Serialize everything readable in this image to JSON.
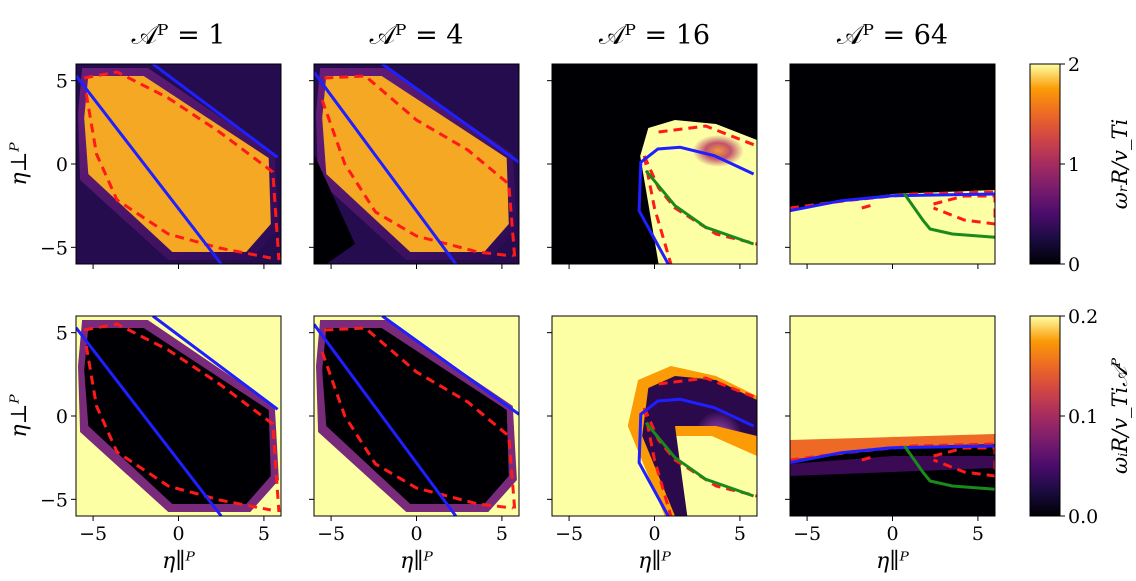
{
  "chart_data": {
    "type": "heatmap",
    "panel_titles": [
      "𝒜ᴾ = 1",
      "𝒜ᴾ = 4",
      "𝒜ᴾ = 16",
      "𝒜ᴾ = 64"
    ],
    "xlabel": "η∥ᴾ",
    "ylabel": "η⊥ᴾ",
    "xlim": [
      -6,
      6
    ],
    "ylim": [
      -6,
      6
    ],
    "xticks": [
      -5,
      0,
      5
    ],
    "yticks": [
      -5,
      0,
      5
    ],
    "tick_labels": [
      "−5",
      "0",
      "5"
    ],
    "colormap": "inferno",
    "rows": [
      {
        "quantity": "ω_r R / v_Ti",
        "colorbar_label": "ωᵣR/v_Ti",
        "colorbar_range": [
          0,
          2
        ],
        "colorbar_ticks": [
          0,
          1,
          2
        ],
        "colorbar_tick_labels": [
          "0",
          "1",
          "2"
        ]
      },
      {
        "quantity": "ω_i R / v_Ti 𝒜ᴾ",
        "colorbar_label": "ωᵢR/v_Ti𝒜ᴾ",
        "colorbar_range": [
          0,
          0.2
        ],
        "colorbar_ticks": [
          0,
          0.1,
          0.2
        ],
        "colorbar_tick_labels": [
          "0.0",
          "0.1",
          "0.2"
        ]
      }
    ],
    "overlay_curves": [
      {
        "panel": 0,
        "color": "#1f1fff",
        "style": "solid",
        "points": [
          [
            -1.5,
            6
          ],
          [
            5.8,
            0.4
          ]
        ]
      },
      {
        "panel": 0,
        "color": "#1f1fff",
        "style": "solid",
        "points": [
          [
            -6,
            5.3
          ],
          [
            2.5,
            -6
          ]
        ]
      },
      {
        "panel": 1,
        "color": "#1f1fff",
        "style": "solid",
        "points": [
          [
            -2,
            6
          ],
          [
            6,
            0.1
          ]
        ]
      },
      {
        "panel": 1,
        "color": "#1f1fff",
        "style": "solid",
        "points": [
          [
            -6,
            5.5
          ],
          [
            2.3,
            -6
          ]
        ]
      },
      {
        "panel": 2,
        "color": "#1f1fff",
        "style": "solid",
        "points": [
          [
            0.8,
            -6
          ],
          [
            -0.9,
            -2.8
          ],
          [
            -0.8,
            0.1
          ],
          [
            0.2,
            0.9
          ],
          [
            1.5,
            1
          ],
          [
            3.5,
            0.5
          ],
          [
            5.8,
            -0.6
          ]
        ]
      },
      {
        "panel": 2,
        "color": "#1a8a1a",
        "style": "solid",
        "points": [
          [
            -0.5,
            -0.4
          ],
          [
            1.2,
            -2.5
          ],
          [
            3,
            -3.8
          ],
          [
            5.8,
            -4.8
          ]
        ]
      },
      {
        "panel": 3,
        "color": "#1f1fff",
        "style": "solid",
        "points": [
          [
            -6,
            -2.8
          ],
          [
            -3,
            -2.2
          ],
          [
            0,
            -1.9
          ],
          [
            6,
            -1.8
          ]
        ]
      },
      {
        "panel": 3,
        "color": "#1a8a1a",
        "style": "solid",
        "points": [
          [
            0.7,
            -1.8
          ],
          [
            1.8,
            -3.4
          ],
          [
            2.2,
            -3.9
          ],
          [
            3.5,
            -4.2
          ],
          [
            6,
            -4.4
          ]
        ]
      }
    ]
  }
}
